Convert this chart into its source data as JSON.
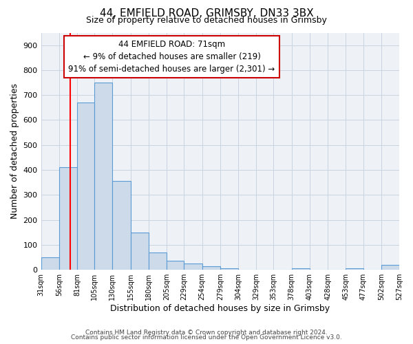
{
  "title1": "44, EMFIELD ROAD, GRIMSBY, DN33 3BX",
  "title2": "Size of property relative to detached houses in Grimsby",
  "xlabel": "Distribution of detached houses by size in Grimsby",
  "ylabel": "Number of detached properties",
  "bin_edges": [
    31,
    56,
    81,
    105,
    130,
    155,
    180,
    205,
    229,
    254,
    279,
    304,
    329,
    353,
    378,
    403,
    428,
    453,
    477,
    502,
    527
  ],
  "bar_heights": [
    50,
    410,
    670,
    750,
    355,
    150,
    70,
    35,
    25,
    15,
    5,
    0,
    0,
    0,
    5,
    0,
    0,
    5,
    0,
    20
  ],
  "bar_face_color": "#ccdaea",
  "bar_edge_color": "#5b9bd5",
  "grid_color": "#c8d4e0",
  "property_line_x": 71,
  "property_line_color": "#ff0000",
  "annotation_line1": "44 EMFIELD ROAD: 71sqm",
  "annotation_line2": "← 9% of detached houses are smaller (219)",
  "annotation_line3": "91% of semi-detached houses are larger (2,301) →",
  "annotation_box_edge_color": "#cc0000",
  "annotation_box_face_color": "#ffffff",
  "ylim": [
    0,
    950
  ],
  "yticks": [
    0,
    100,
    200,
    300,
    400,
    500,
    600,
    700,
    800,
    900
  ],
  "footer1": "Contains HM Land Registry data © Crown copyright and database right 2024.",
  "footer2": "Contains public sector information licensed under the Open Government Licence v3.0.",
  "bg_color": "#ffffff",
  "plot_bg_color": "#eef2f7"
}
